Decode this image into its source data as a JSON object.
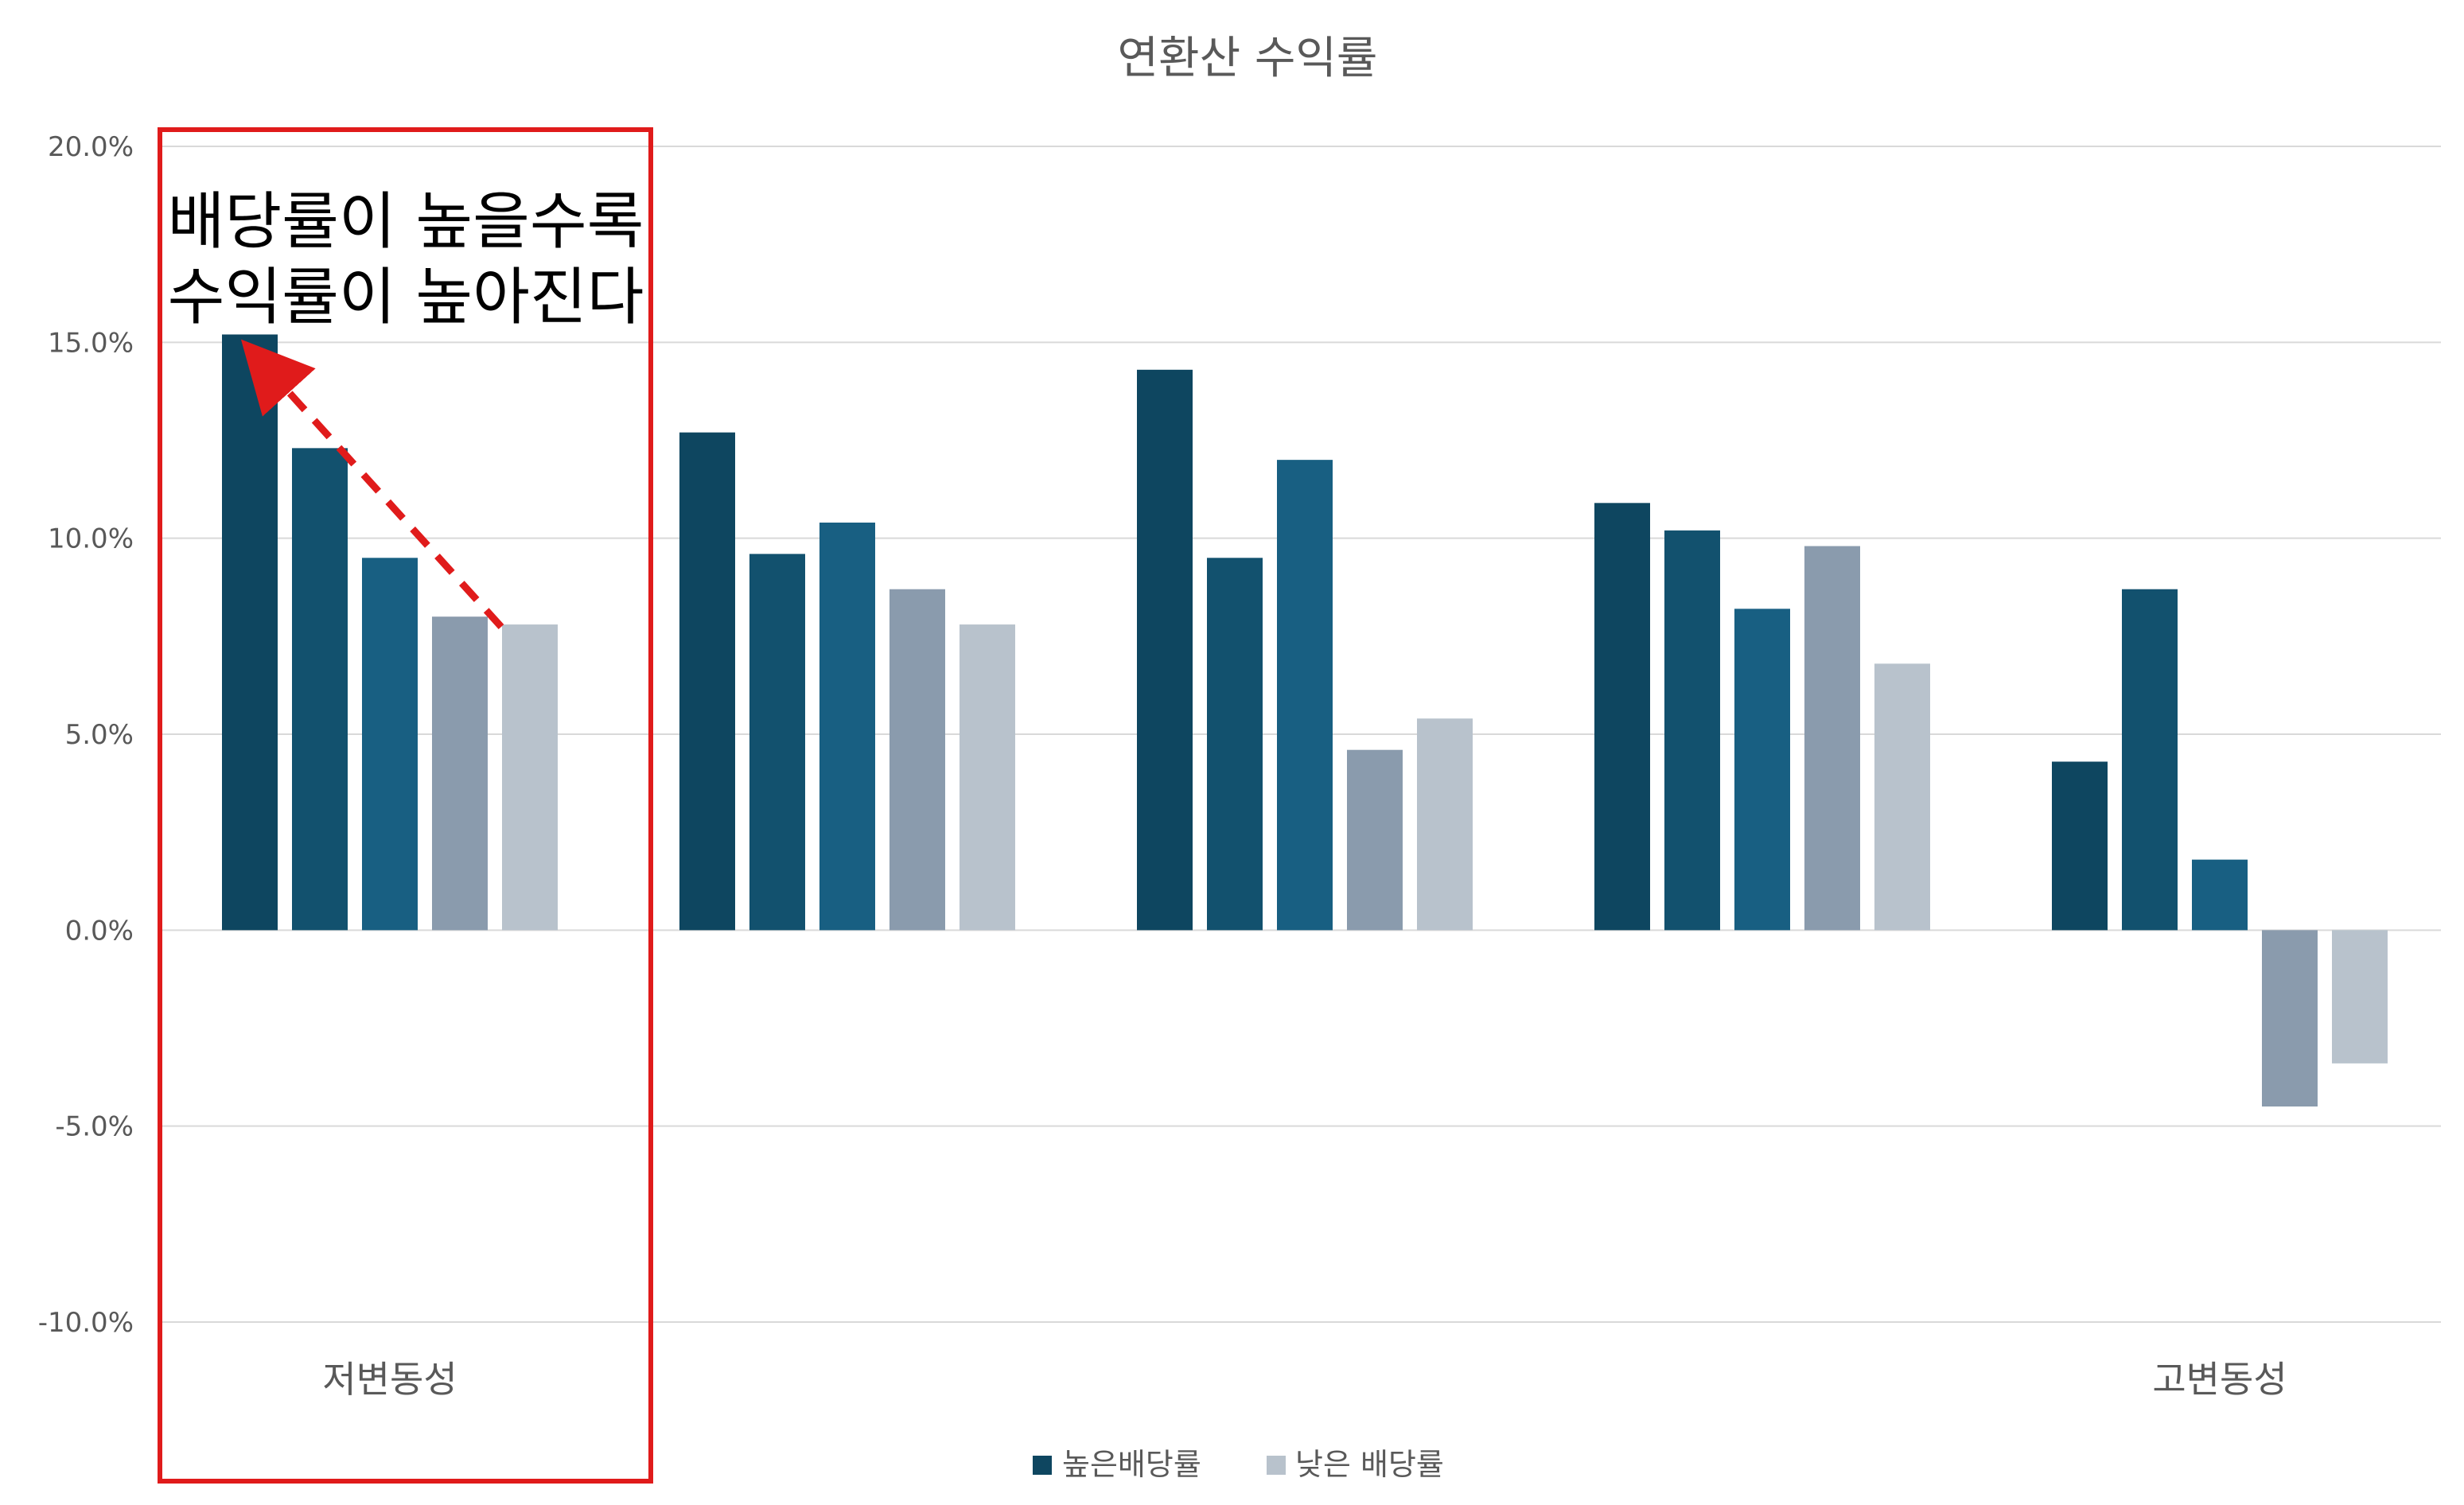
{
  "chart_data": {
    "type": "bar",
    "title": "연환산 수익률",
    "categories": [
      "저변동성",
      "",
      "",
      "",
      "고변동성"
    ],
    "ylim": [
      -10,
      20
    ],
    "yticks": [
      "20.0%",
      "15.0%",
      "10.0%",
      "5.0%",
      "0.0%",
      "-5.0%",
      "-10.0%"
    ],
    "ytick_values": [
      20,
      15,
      10,
      5,
      0,
      -5,
      -10
    ],
    "grid": true,
    "legend": {
      "position": "bottom",
      "entries": [
        {
          "label": "높은배당률",
          "color": "#0e4660"
        },
        {
          "label": "낮은 배당률",
          "color": "#b8c2cc"
        }
      ]
    },
    "series_colors": [
      "#0e4660",
      "#12516e",
      "#185f82",
      "#8a9bad",
      "#b8c2cc"
    ],
    "groups": [
      {
        "label": "저변동성",
        "values": [
          15.2,
          12.3,
          9.5,
          8.0,
          7.8
        ]
      },
      {
        "label": "",
        "values": [
          12.7,
          9.6,
          10.4,
          8.7,
          7.8
        ]
      },
      {
        "label": "",
        "values": [
          14.3,
          9.5,
          12.0,
          4.6,
          5.4
        ]
      },
      {
        "label": "",
        "values": [
          10.9,
          10.2,
          8.2,
          9.8,
          6.8
        ]
      },
      {
        "label": "고변동성",
        "values": [
          4.3,
          8.7,
          1.8,
          -4.5,
          -3.4
        ]
      }
    ],
    "annotation": {
      "lines": [
        "배당률이 높을수록",
        "수익률이 높아진다"
      ],
      "highlight_color": "#e01b1b"
    }
  }
}
